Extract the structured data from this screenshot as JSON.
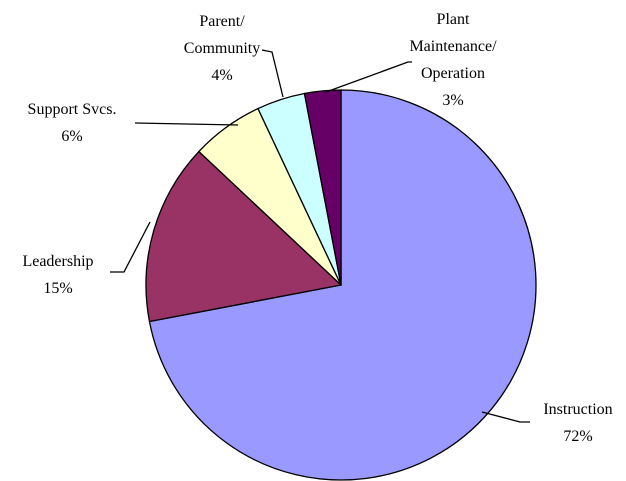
{
  "chart_data": {
    "type": "pie",
    "categories": [
      "Instruction",
      "Leadership",
      "Support Svcs.",
      "Parent/ Community",
      "Plant Maintenance/ Operation"
    ],
    "values": [
      72,
      15,
      6,
      4,
      3
    ],
    "value_labels": [
      "72%",
      "15%",
      "6%",
      "4%",
      "3%"
    ],
    "colors": [
      "#9999ff",
      "#993366",
      "#ffffcc",
      "#ccffff",
      "#660066"
    ]
  }
}
